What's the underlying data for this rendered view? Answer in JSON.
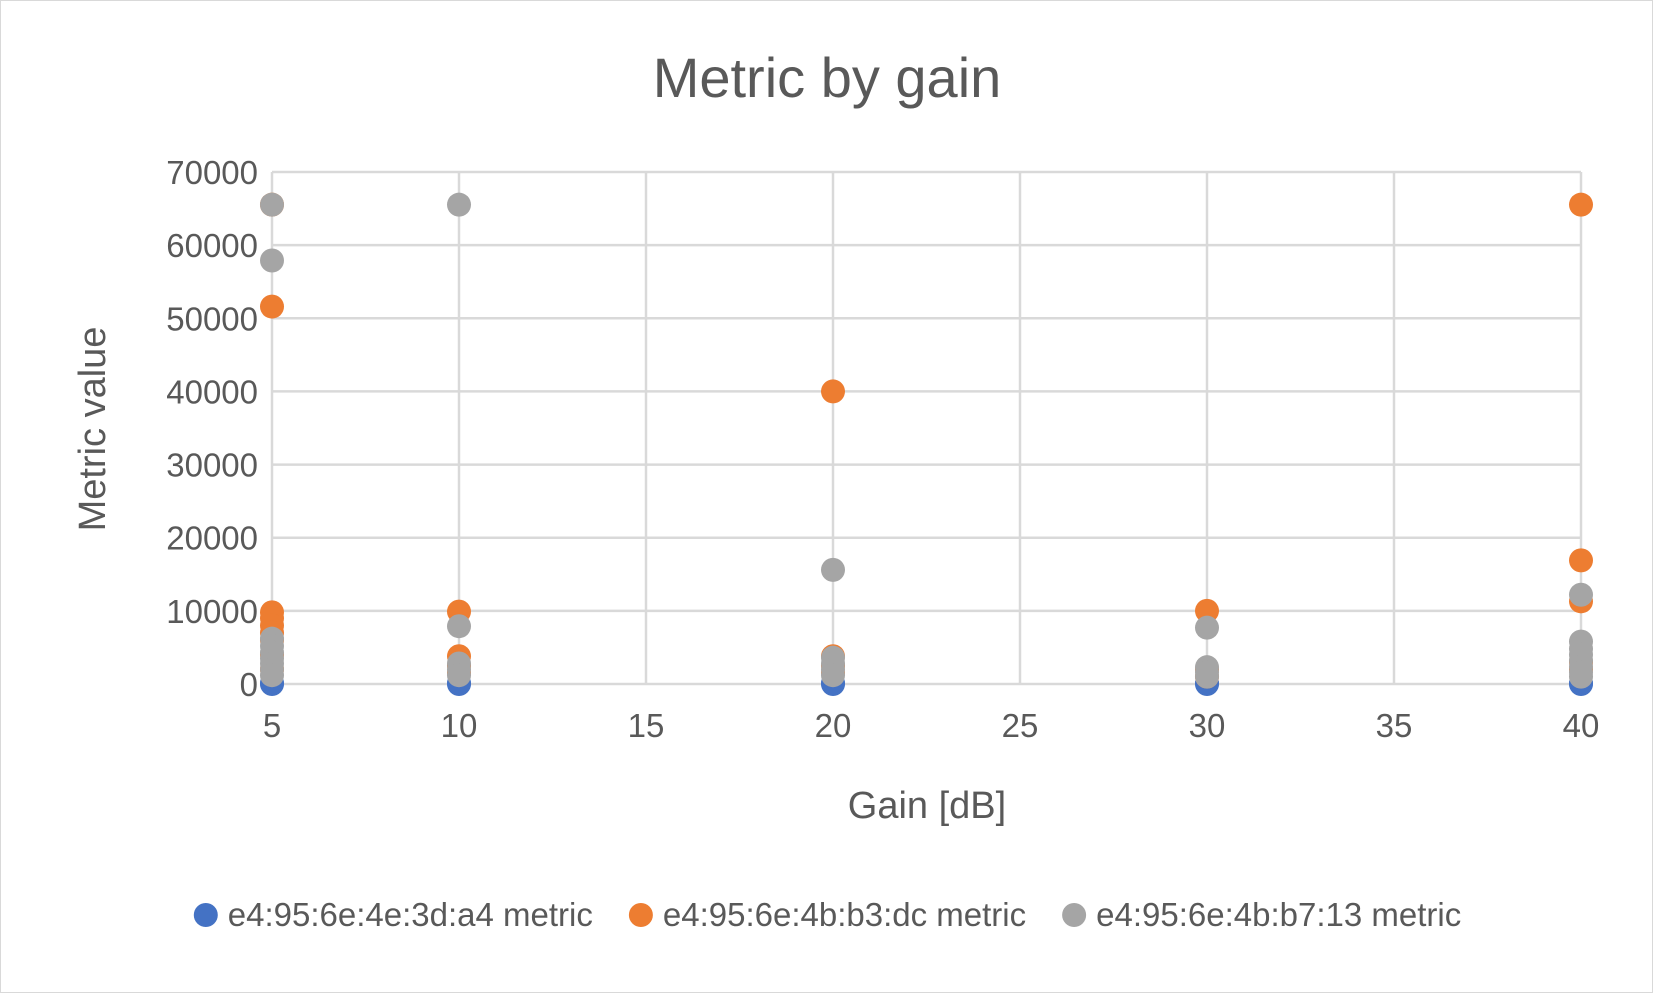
{
  "chart_data": {
    "type": "scatter",
    "title": "Metric by gain",
    "xlabel": "Gain [dB]",
    "ylabel": "Metric value",
    "xlim": [
      5,
      40
    ],
    "ylim": [
      0,
      70000
    ],
    "x_ticks": [
      5,
      10,
      15,
      20,
      25,
      30,
      35,
      40
    ],
    "y_ticks": [
      0,
      10000,
      20000,
      30000,
      40000,
      50000,
      60000,
      70000
    ],
    "x_tick_labels": [
      "5",
      "10",
      "15",
      "20",
      "25",
      "30",
      "35",
      "40"
    ],
    "y_tick_labels": [
      "0",
      "10000",
      "20000",
      "30000",
      "40000",
      "50000",
      "60000",
      "70000"
    ],
    "grid": true,
    "legend_position": "bottom",
    "series": [
      {
        "name": "e4:95:6e:4e:3d:a4 metric",
        "color": "#4472C4",
        "points": [
          {
            "x": 5,
            "y": 0
          },
          {
            "x": 5,
            "y": 100
          },
          {
            "x": 10,
            "y": 0
          },
          {
            "x": 10,
            "y": 100
          },
          {
            "x": 20,
            "y": 0
          },
          {
            "x": 20,
            "y": 100
          },
          {
            "x": 30,
            "y": 0
          },
          {
            "x": 30,
            "y": 100
          },
          {
            "x": 40,
            "y": 0
          },
          {
            "x": 40,
            "y": 100
          }
        ]
      },
      {
        "name": "e4:95:6e:4b:b3:dc metric",
        "color": "#ED7D31",
        "points": [
          {
            "x": 5,
            "y": 65535
          },
          {
            "x": 5,
            "y": 51600
          },
          {
            "x": 5,
            "y": 9800
          },
          {
            "x": 5,
            "y": 9000
          },
          {
            "x": 5,
            "y": 8000
          },
          {
            "x": 5,
            "y": 7000
          },
          {
            "x": 5,
            "y": 6000
          },
          {
            "x": 5,
            "y": 4000
          },
          {
            "x": 5,
            "y": 2000
          },
          {
            "x": 10,
            "y": 9900
          },
          {
            "x": 10,
            "y": 3800
          },
          {
            "x": 10,
            "y": 2500
          },
          {
            "x": 10,
            "y": 1500
          },
          {
            "x": 20,
            "y": 40000
          },
          {
            "x": 20,
            "y": 3800
          },
          {
            "x": 20,
            "y": 2500
          },
          {
            "x": 20,
            "y": 1500
          },
          {
            "x": 30,
            "y": 10000
          },
          {
            "x": 30,
            "y": 2000
          },
          {
            "x": 30,
            "y": 1000
          },
          {
            "x": 40,
            "y": 65535
          },
          {
            "x": 40,
            "y": 16900
          },
          {
            "x": 40,
            "y": 11300
          },
          {
            "x": 40,
            "y": 3000
          },
          {
            "x": 40,
            "y": 2000
          }
        ]
      },
      {
        "name": "e4:95:6e:4b:b7:13 metric",
        "color": "#A5A5A5",
        "points": [
          {
            "x": 5,
            "y": 65535
          },
          {
            "x": 5,
            "y": 57900
          },
          {
            "x": 5,
            "y": 6200
          },
          {
            "x": 5,
            "y": 5200
          },
          {
            "x": 5,
            "y": 4300
          },
          {
            "x": 5,
            "y": 3500
          },
          {
            "x": 5,
            "y": 2800
          },
          {
            "x": 5,
            "y": 2000
          },
          {
            "x": 5,
            "y": 1200
          },
          {
            "x": 10,
            "y": 65535
          },
          {
            "x": 10,
            "y": 7900
          },
          {
            "x": 10,
            "y": 2800
          },
          {
            "x": 10,
            "y": 2000
          },
          {
            "x": 10,
            "y": 1200
          },
          {
            "x": 20,
            "y": 15600
          },
          {
            "x": 20,
            "y": 3600
          },
          {
            "x": 20,
            "y": 2800
          },
          {
            "x": 20,
            "y": 2000
          },
          {
            "x": 20,
            "y": 1200
          },
          {
            "x": 30,
            "y": 7700
          },
          {
            "x": 30,
            "y": 2300
          },
          {
            "x": 30,
            "y": 1600
          },
          {
            "x": 30,
            "y": 1000
          },
          {
            "x": 40,
            "y": 12200
          },
          {
            "x": 40,
            "y": 5800
          },
          {
            "x": 40,
            "y": 4800
          },
          {
            "x": 40,
            "y": 4000
          },
          {
            "x": 40,
            "y": 3200
          },
          {
            "x": 40,
            "y": 2400
          },
          {
            "x": 40,
            "y": 1600
          },
          {
            "x": 40,
            "y": 1000
          }
        ]
      }
    ]
  }
}
